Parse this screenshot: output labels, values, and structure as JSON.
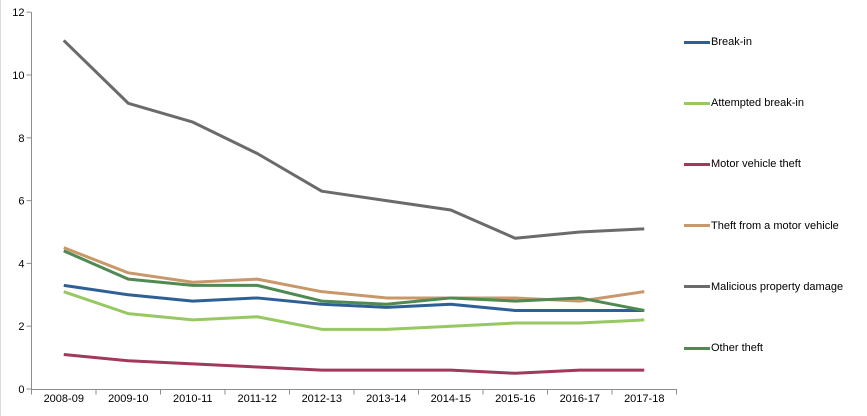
{
  "page": {
    "background": "#ffffff",
    "edge_border_color": "#dcdcdc"
  },
  "chart_data": {
    "type": "line",
    "categories": [
      "2008-09",
      "2009-10",
      "2010-11",
      "2011-12",
      "2012-13",
      "2013-14",
      "2014-15",
      "2015-16",
      "2016-17",
      "2017-18"
    ],
    "series": [
      {
        "name": "Break-in",
        "color": "#2e6096",
        "values": [
          3.3,
          3.0,
          2.8,
          2.9,
          2.7,
          2.6,
          2.7,
          2.5,
          2.5,
          2.5
        ]
      },
      {
        "name": "Attempted break-in",
        "color": "#98c861",
        "values": [
          3.1,
          2.4,
          2.2,
          2.3,
          1.9,
          1.9,
          2.0,
          2.1,
          2.1,
          2.2
        ]
      },
      {
        "name": "Motor vehicle theft",
        "color": "#a1395f",
        "values": [
          1.1,
          0.9,
          0.8,
          0.7,
          0.6,
          0.6,
          0.6,
          0.5,
          0.6,
          0.6
        ]
      },
      {
        "name": "Theft from a motor vehicle",
        "color": "#c9986a",
        "values": [
          4.5,
          3.7,
          3.4,
          3.5,
          3.1,
          2.9,
          2.9,
          2.9,
          2.8,
          3.1
        ]
      },
      {
        "name": "Malicious property damage",
        "color": "#6b6b6b",
        "values": [
          11.1,
          9.1,
          8.5,
          7.5,
          6.3,
          6.0,
          5.7,
          4.8,
          5.0,
          5.1
        ]
      },
      {
        "name": "Other theft",
        "color": "#4f8a52",
        "values": [
          4.4,
          3.5,
          3.3,
          3.3,
          2.8,
          2.7,
          2.9,
          2.8,
          2.9,
          2.5
        ]
      }
    ],
    "ylim": [
      0,
      12
    ],
    "yticks": [
      0,
      2,
      4,
      6,
      8,
      10,
      12
    ],
    "xlabel": "",
    "ylabel": "",
    "title": "",
    "grid": false,
    "legend_position": "right",
    "axis_color": "#8c8c8c",
    "tick_label_color": "#000000"
  }
}
